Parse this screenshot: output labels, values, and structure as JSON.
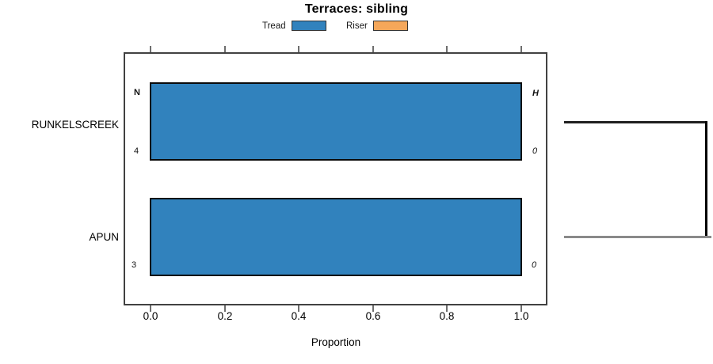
{
  "title": "Terraces: sibling",
  "legend": {
    "items": [
      {
        "label": "Tread",
        "color": "#3182BD"
      },
      {
        "label": "Riser",
        "color": "#F5A75A"
      }
    ]
  },
  "chart_data": {
    "type": "bar",
    "orientation": "horizontal",
    "title": "Terraces: sibling",
    "xlabel": "Proportion",
    "xlim": [
      0.0,
      1.05
    ],
    "x_ticks": [
      "0.0",
      "0.2",
      "0.4",
      "0.6",
      "0.8",
      "1.0"
    ],
    "grid": false,
    "legend_position": "top",
    "categories": [
      "RUNKELSCREEK",
      "APUN"
    ],
    "series": [
      {
        "name": "Tread",
        "color": "#3182BD",
        "values": [
          1.0,
          1.0
        ]
      },
      {
        "name": "Riser",
        "color": "#F5A75A",
        "values": [
          0.0,
          0.0
        ]
      }
    ],
    "bar_annotations": [
      {
        "category": "RUNKELSCREEK",
        "left_header": "N",
        "left_value": "4",
        "right_header": "H",
        "right_value": "0"
      },
      {
        "category": "APUN",
        "left_header": "",
        "left_value": "3",
        "right_header": "",
        "right_value": "0"
      }
    ]
  },
  "step_figure": {
    "description": "staircase profile at right: tread - riser - tread",
    "tread_top_color": "#1f1f1f",
    "riser_color": "#000000",
    "tread_bottom_color": "#8a8a8a"
  },
  "colors": {
    "bar_border": "#0a0a0a",
    "plot_border": "#414141",
    "tick": "#6e6e6e"
  }
}
